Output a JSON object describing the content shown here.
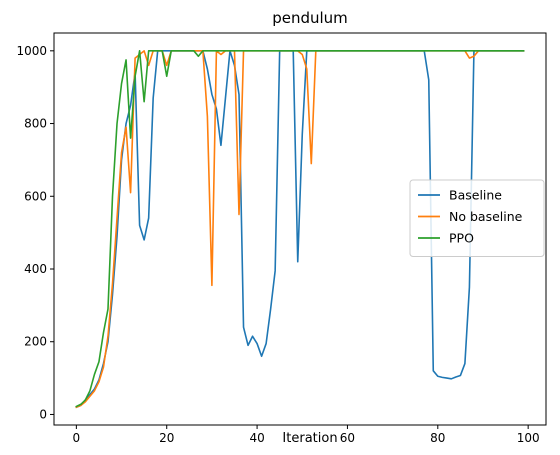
{
  "chart_data": {
    "type": "line",
    "title": "pendulum",
    "xlabel": "Iteration",
    "ylabel": "",
    "xlim": [
      -4.95,
      103.95
    ],
    "ylim": [
      -29,
      1049
    ],
    "xticks": [
      0,
      20,
      40,
      60,
      80,
      100
    ],
    "yticks": [
      0,
      200,
      400,
      600,
      800,
      1000
    ],
    "grid": false,
    "legend_position": "center-right",
    "series": [
      {
        "name": "Baseline",
        "color": "#1f77b4",
        "x": [
          0,
          1,
          2,
          3,
          4,
          5,
          6,
          7,
          8,
          9,
          10,
          11,
          12,
          13,
          14,
          15,
          16,
          17,
          18,
          19,
          20,
          21,
          22,
          23,
          24,
          25,
          26,
          27,
          28,
          29,
          30,
          31,
          32,
          33,
          34,
          35,
          36,
          37,
          38,
          39,
          40,
          41,
          42,
          43,
          44,
          45,
          46,
          47,
          48,
          49,
          50,
          51,
          52,
          53,
          54,
          55,
          56,
          57,
          58,
          59,
          60,
          61,
          62,
          63,
          64,
          65,
          66,
          67,
          68,
          69,
          70,
          71,
          72,
          73,
          74,
          75,
          76,
          77,
          78,
          79,
          80,
          81,
          82,
          83,
          84,
          85,
          86,
          87,
          88,
          89,
          90,
          91,
          92,
          93,
          94,
          95,
          96,
          97,
          98,
          99
        ],
        "values": [
          20,
          25,
          40,
          55,
          70,
          95,
          140,
          200,
          330,
          490,
          700,
          800,
          850,
          940,
          520,
          480,
          540,
          870,
          1000,
          1000,
          1000,
          1000,
          1000,
          1000,
          1000,
          1000,
          1000,
          1000,
          1000,
          950,
          880,
          840,
          740,
          870,
          1000,
          960,
          880,
          240,
          190,
          215,
          195,
          160,
          195,
          290,
          395,
          1000,
          1000,
          1000,
          1000,
          420,
          770,
          1000,
          1000,
          1000,
          1000,
          1000,
          1000,
          1000,
          1000,
          1000,
          1000,
          1000,
          1000,
          1000,
          1000,
          1000,
          1000,
          1000,
          1000,
          1000,
          1000,
          1000,
          1000,
          1000,
          1000,
          1000,
          1000,
          1000,
          920,
          120,
          105,
          102,
          100,
          98,
          103,
          107,
          140,
          350,
          1000,
          1000,
          1000,
          1000,
          1000,
          1000,
          1000,
          1000,
          1000,
          1000,
          1000,
          1000
        ]
      },
      {
        "name": "No baseline",
        "color": "#ff7f0e",
        "x": [
          0,
          1,
          2,
          3,
          4,
          5,
          6,
          7,
          8,
          9,
          10,
          11,
          12,
          13,
          14,
          15,
          16,
          17,
          18,
          19,
          20,
          21,
          22,
          23,
          24,
          25,
          26,
          27,
          28,
          29,
          30,
          31,
          32,
          33,
          34,
          35,
          36,
          37,
          38,
          39,
          40,
          41,
          42,
          43,
          44,
          45,
          46,
          47,
          48,
          49,
          50,
          51,
          52,
          53,
          54,
          55,
          56,
          57,
          58,
          59,
          60,
          61,
          62,
          63,
          64,
          65,
          66,
          67,
          68,
          69,
          70,
          71,
          72,
          73,
          74,
          75,
          76,
          77,
          78,
          79,
          80,
          81,
          82,
          83,
          84,
          85,
          86,
          87,
          88,
          89,
          90,
          91,
          92,
          93,
          94,
          95,
          96,
          97,
          98,
          99
        ],
        "values": [
          20,
          25,
          35,
          50,
          65,
          90,
          130,
          215,
          360,
          540,
          720,
          790,
          610,
          980,
          990,
          1000,
          960,
          1000,
          1000,
          1000,
          960,
          1000,
          1000,
          1000,
          1000,
          1000,
          1000,
          1000,
          1000,
          820,
          355,
          1000,
          990,
          1000,
          1000,
          1000,
          550,
          1000,
          1000,
          1000,
          1000,
          1000,
          1000,
          1000,
          1000,
          1000,
          1000,
          1000,
          1000,
          1000,
          990,
          950,
          690,
          1000,
          1000,
          1000,
          1000,
          1000,
          1000,
          1000,
          1000,
          1000,
          1000,
          1000,
          1000,
          1000,
          1000,
          1000,
          1000,
          1000,
          1000,
          1000,
          1000,
          1000,
          1000,
          1000,
          1000,
          1000,
          1000,
          1000,
          1000,
          1000,
          1000,
          1000,
          1000,
          1000,
          1000,
          980,
          985,
          1000,
          1000,
          1000,
          1000,
          1000,
          1000,
          1000,
          1000,
          1000,
          1000,
          1000
        ]
      },
      {
        "name": "PPO",
        "color": "#2ca02c",
        "x": [
          0,
          1,
          2,
          3,
          4,
          5,
          6,
          7,
          8,
          9,
          10,
          11,
          12,
          13,
          14,
          15,
          16,
          17,
          18,
          19,
          20,
          21,
          22,
          23,
          24,
          25,
          26,
          27,
          28,
          29,
          30,
          31,
          32,
          33,
          34,
          35,
          36,
          37,
          38,
          39,
          40,
          41,
          42,
          43,
          44,
          45,
          46,
          47,
          48,
          49,
          50,
          51,
          52,
          53,
          54,
          55,
          56,
          57,
          58,
          59,
          60,
          61,
          62,
          63,
          64,
          65,
          66,
          67,
          68,
          69,
          70,
          71,
          72,
          73,
          74,
          75,
          76,
          77,
          78,
          79,
          80,
          81,
          82,
          83,
          84,
          85,
          86,
          87,
          88,
          89,
          90,
          91,
          92,
          93,
          94,
          95,
          96,
          97,
          98,
          99
        ],
        "values": [
          22,
          28,
          40,
          65,
          110,
          145,
          225,
          290,
          600,
          800,
          910,
          975,
          760,
          930,
          1000,
          860,
          1000,
          1000,
          1000,
          1000,
          930,
          1000,
          1000,
          1000,
          1000,
          1000,
          1000,
          985,
          1000,
          1000,
          1000,
          1000,
          1000,
          1000,
          1000,
          1000,
          1000,
          1000,
          1000,
          1000,
          1000,
          1000,
          1000,
          1000,
          1000,
          1000,
          1000,
          1000,
          1000,
          1000,
          1000,
          1000,
          1000,
          1000,
          1000,
          1000,
          1000,
          1000,
          1000,
          1000,
          1000,
          1000,
          1000,
          1000,
          1000,
          1000,
          1000,
          1000,
          1000,
          1000,
          1000,
          1000,
          1000,
          1000,
          1000,
          1000,
          1000,
          1000,
          1000,
          1000,
          1000,
          1000,
          1000,
          1000,
          1000,
          1000,
          1000,
          1000,
          1000,
          1000,
          1000,
          1000,
          1000,
          1000,
          1000,
          1000,
          1000,
          1000,
          1000,
          1000
        ]
      }
    ]
  }
}
